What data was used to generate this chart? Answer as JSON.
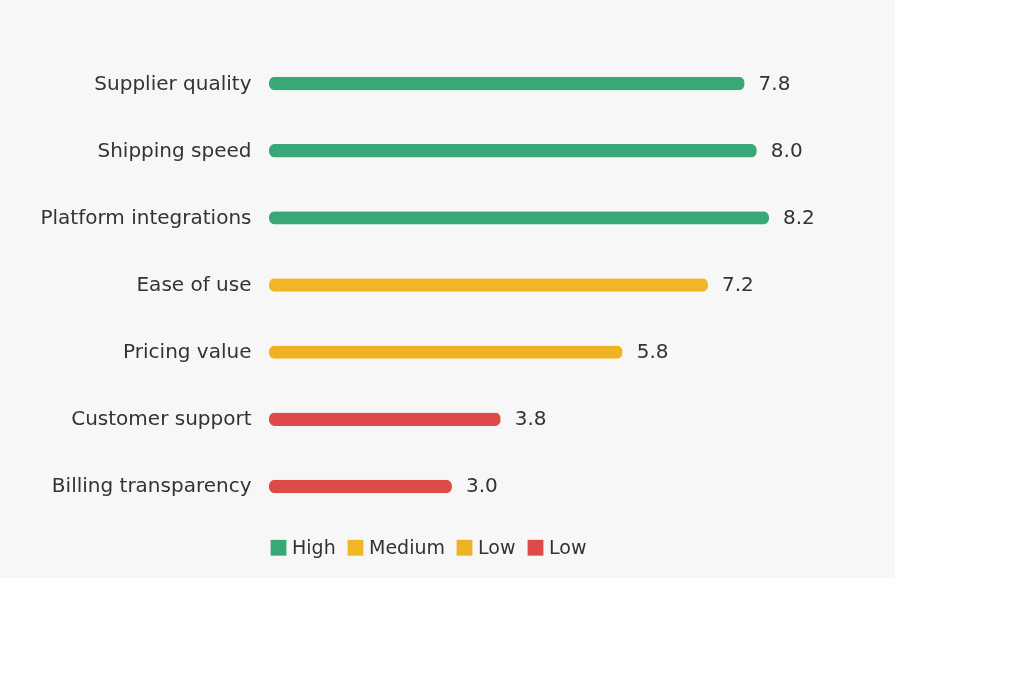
{
  "chart_data": {
    "type": "bar",
    "orientation": "horizontal",
    "categories": [
      "Supplier quality",
      "Shipping speed",
      "Platform integrations",
      "Ease of use",
      "Pricing value",
      "Customer support",
      "Billing transparency"
    ],
    "series": [
      {
        "name": "High",
        "color": "#38a876",
        "values": [
          7.8,
          8.0,
          8.2,
          null,
          null,
          null,
          null
        ],
        "value_labels": [
          "7.8",
          "8.0",
          "8.2",
          null,
          null,
          null,
          null
        ]
      },
      {
        "name": "Medium",
        "color": "#f1b527",
        "values": [
          null,
          null,
          null,
          7.2,
          null,
          null,
          null
        ],
        "value_labels": [
          null,
          null,
          null,
          "7.2",
          null,
          null,
          null
        ]
      },
      {
        "name": "Low",
        "color": "#efb224",
        "values": [
          null,
          null,
          null,
          null,
          5.8,
          null,
          null
        ],
        "value_labels": [
          null,
          null,
          null,
          null,
          "5.8",
          null,
          null
        ]
      },
      {
        "name": "Low",
        "color": "#de4a47",
        "values": [
          null,
          null,
          null,
          null,
          null,
          3.8,
          3.0
        ],
        "value_labels": [
          null,
          null,
          null,
          null,
          null,
          "3.8",
          "3.0"
        ]
      }
    ],
    "legend": "bottom",
    "grid": false,
    "tick_labels": "y"
  }
}
